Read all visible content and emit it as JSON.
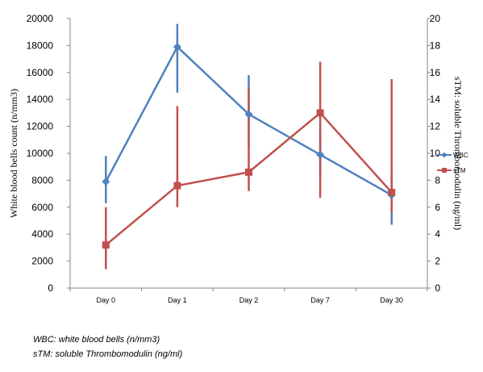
{
  "chart_data": {
    "type": "line",
    "categories": [
      "Day 0",
      "Day 1",
      "Day 2",
      "Day 7",
      "Day 30"
    ],
    "y_left": {
      "label": "White blood bells count (n/mm3)",
      "lim": [
        0,
        20000
      ],
      "ticks": [
        0,
        2000,
        4000,
        6000,
        8000,
        10000,
        12000,
        14000,
        16000,
        18000,
        20000
      ]
    },
    "y_right": {
      "label": "sTM: soluble Thrombomodulin (ng/ml)",
      "lim": [
        0,
        20
      ],
      "ticks": [
        0,
        2,
        4,
        6,
        8,
        10,
        12,
        14,
        16,
        18,
        20
      ]
    },
    "grid": false,
    "legend": "right",
    "series": [
      {
        "name": "WBC",
        "axis": "left",
        "color": "#4f81bd",
        "marker": "diamond",
        "values": [
          7900,
          17900,
          12900,
          9900,
          6900
        ],
        "error_low": [
          6300,
          14500,
          10400,
          8300,
          4700
        ],
        "error_high": [
          9800,
          19600,
          15800,
          11700,
          8400
        ]
      },
      {
        "name": "sTM",
        "axis": "right",
        "color": "#c0504d",
        "marker": "square",
        "values": [
          3.2,
          7.6,
          8.6,
          13.0,
          7.1
        ],
        "error_low": [
          1.4,
          6.0,
          7.2,
          6.7,
          5.6
        ],
        "error_high": [
          6.0,
          13.5,
          14.8,
          16.8,
          15.5
        ]
      }
    ]
  },
  "footnotes": {
    "wbc": "WBC: white blood bells (n/mm3)",
    "stm": "sTM: soluble Thrombomodulin (ng/ml)"
  }
}
